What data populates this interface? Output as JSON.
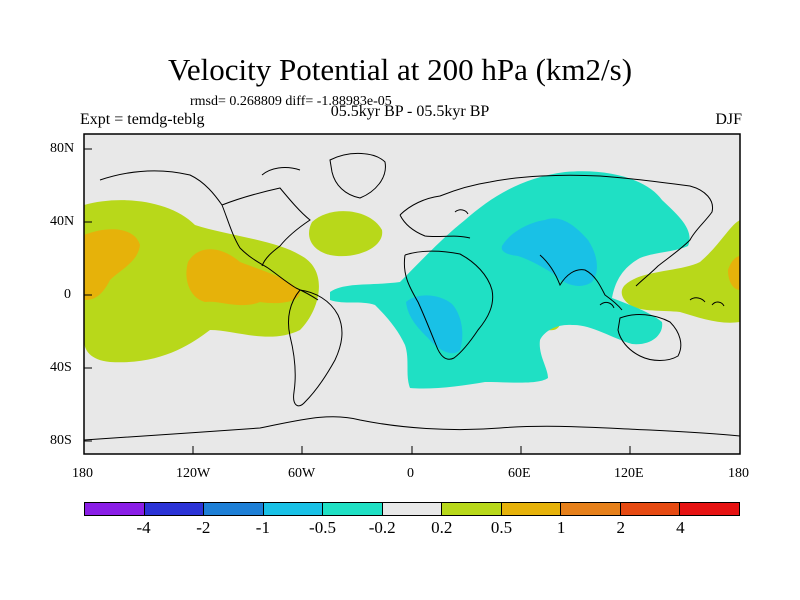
{
  "title": "Velocity Potential at 200 hPa (km2/s)",
  "stats": "rmsd= 0.268809 diff= -1.88983e-05",
  "expt": "Expt = temdg-teblg",
  "period": "05.5kyr BP - 05.5kyr BP",
  "season": "DJF",
  "map": {
    "lat_labels": [
      "80N",
      "40N",
      "0",
      "40S",
      "80S"
    ],
    "lon_labels": [
      "180",
      "120W",
      "60W",
      "0",
      "60E",
      "120E",
      "180"
    ]
  },
  "colorbar": {
    "labels": [
      "-4",
      "-2",
      "-1",
      "-0.5",
      "-0.2",
      "0.2",
      "0.5",
      "1",
      "2",
      "4"
    ],
    "colors": [
      "#8a1ee6",
      "#2b33d6",
      "#1d7fd6",
      "#19c1e6",
      "#1fe0c4",
      "#e8e8e8",
      "#b8d81a",
      "#e6b20a",
      "#e6801a",
      "#e64a12",
      "#e61212"
    ]
  },
  "colors": {
    "ocean_bg": "#e8e8e8",
    "level_neg_0_5": "#19c1e6",
    "level_neg_0_2": "#1fe0c4",
    "level_pos_0_2": "#b8d81a",
    "level_pos_0_5": "#e6b20a"
  }
}
